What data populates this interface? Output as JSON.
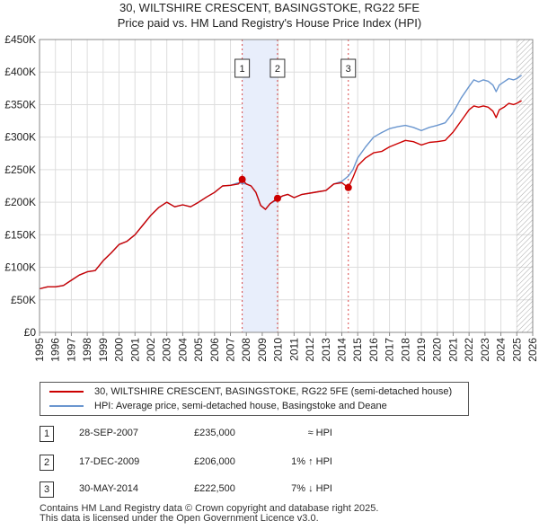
{
  "title_line1": "30, WILTSHIRE CRESCENT, BASINGSTOKE, RG22 5FE",
  "title_line2": "Price paid vs. HM Land Registry's House Price Index (HPI)",
  "colors": {
    "price": "#cc0000",
    "hpi": "#6a96cf",
    "sale_band": "#e8eefb",
    "future_hatch": "#aaaaaa",
    "grid": "#dddddd"
  },
  "chart_data": {
    "type": "line",
    "xlim": [
      1995,
      2026
    ],
    "ylim": [
      0,
      450000
    ],
    "yticks": [
      {
        "value": 0,
        "label": "£0"
      },
      {
        "value": 50000,
        "label": "£50K"
      },
      {
        "value": 100000,
        "label": "£100K"
      },
      {
        "value": 150000,
        "label": "£150K"
      },
      {
        "value": 200000,
        "label": "£200K"
      },
      {
        "value": 250000,
        "label": "£250K"
      },
      {
        "value": 300000,
        "label": "£300K"
      },
      {
        "value": 350000,
        "label": "£350K"
      },
      {
        "value": 400000,
        "label": "£400K"
      },
      {
        "value": 450000,
        "label": "£450K"
      }
    ],
    "xticks": [
      "1995",
      "1996",
      "1997",
      "1998",
      "1999",
      "2000",
      "2001",
      "2002",
      "2003",
      "2004",
      "2005",
      "2006",
      "2007",
      "2008",
      "2009",
      "2010",
      "2011",
      "2012",
      "2013",
      "2014",
      "2015",
      "2016",
      "2017",
      "2018",
      "2019",
      "2020",
      "2021",
      "2022",
      "2023",
      "2024",
      "2025",
      "2026"
    ],
    "series": [
      {
        "name": "30, WILTSHIRE CRESCENT, BASINGSTOKE, RG22 5FE (semi-detached house)",
        "color": "#cc0000",
        "x": [
          1995.0,
          1995.5,
          1996.0,
          1996.5,
          1997.0,
          1997.5,
          1998.0,
          1998.5,
          1999.0,
          1999.5,
          2000.0,
          2000.5,
          2001.0,
          2001.5,
          2002.0,
          2002.5,
          2003.0,
          2003.5,
          2004.0,
          2004.5,
          2005.0,
          2005.5,
          2006.0,
          2006.5,
          2007.0,
          2007.5,
          2007.74,
          2008.0,
          2008.3,
          2008.6,
          2008.9,
          2009.2,
          2009.5,
          2009.96,
          2010.3,
          2010.6,
          2011.0,
          2011.5,
          2012.0,
          2012.5,
          2013.0,
          2013.5,
          2014.0,
          2014.41,
          2014.7,
          2015.0,
          2015.5,
          2016.0,
          2016.5,
          2017.0,
          2017.5,
          2018.0,
          2018.5,
          2019.0,
          2019.5,
          2020.0,
          2020.5,
          2021.0,
          2021.5,
          2022.0,
          2022.3,
          2022.6,
          2022.9,
          2023.2,
          2023.5,
          2023.7,
          2023.9,
          2024.2,
          2024.5,
          2024.8,
          2025.0,
          2025.3
        ],
        "values": [
          67000,
          70000,
          70000,
          72000,
          80000,
          88000,
          93000,
          95000,
          110000,
          122000,
          135000,
          140000,
          150000,
          165000,
          180000,
          192000,
          200000,
          193000,
          196000,
          193000,
          200000,
          208000,
          215000,
          225000,
          226000,
          228000,
          235000,
          228000,
          225000,
          215000,
          195000,
          189000,
          198000,
          206000,
          210000,
          212000,
          207000,
          212000,
          214000,
          216000,
          218000,
          228000,
          230000,
          222500,
          238000,
          256000,
          268000,
          276000,
          278000,
          285000,
          290000,
          295000,
          293000,
          288000,
          292000,
          293000,
          295000,
          308000,
          325000,
          342000,
          348000,
          346000,
          348000,
          346000,
          340000,
          330000,
          342000,
          346000,
          352000,
          350000,
          352000,
          356000
        ]
      },
      {
        "name": "HPI: Average price, semi-detached house, Basingstoke and Deane",
        "color": "#6a96cf",
        "x": [
          1995.0,
          1995.5,
          1996.0,
          1996.5,
          1997.0,
          1997.5,
          1998.0,
          1998.5,
          1999.0,
          1999.5,
          2000.0,
          2000.5,
          2001.0,
          2001.5,
          2002.0,
          2002.5,
          2003.0,
          2003.5,
          2004.0,
          2004.5,
          2005.0,
          2005.5,
          2006.0,
          2006.5,
          2007.0,
          2007.5,
          2008.0,
          2008.3,
          2008.6,
          2008.9,
          2009.2,
          2009.5,
          2009.96,
          2010.3,
          2010.6,
          2011.0,
          2011.5,
          2012.0,
          2012.5,
          2013.0,
          2013.5,
          2014.0,
          2014.41,
          2014.7,
          2015.0,
          2015.5,
          2016.0,
          2016.5,
          2017.0,
          2017.5,
          2018.0,
          2018.5,
          2019.0,
          2019.5,
          2020.0,
          2020.5,
          2021.0,
          2021.5,
          2022.0,
          2022.3,
          2022.6,
          2022.9,
          2023.2,
          2023.5,
          2023.7,
          2023.9,
          2024.2,
          2024.5,
          2024.8,
          2025.0,
          2025.3
        ],
        "values": [
          67000,
          70000,
          70000,
          72000,
          80000,
          88000,
          93000,
          95000,
          110000,
          122000,
          135000,
          140000,
          150000,
          165000,
          180000,
          192000,
          200000,
          193000,
          196000,
          193000,
          200000,
          208000,
          215000,
          225000,
          226000,
          230000,
          228000,
          225000,
          215000,
          195000,
          189000,
          198000,
          204000,
          210000,
          212000,
          207000,
          212000,
          214000,
          216000,
          218000,
          228000,
          232000,
          240000,
          250000,
          268000,
          285000,
          300000,
          307000,
          313000,
          316000,
          318000,
          315000,
          310000,
          315000,
          318000,
          322000,
          338000,
          360000,
          378000,
          388000,
          385000,
          388000,
          386000,
          380000,
          370000,
          380000,
          385000,
          390000,
          388000,
          390000,
          395000
        ]
      }
    ],
    "sales": [
      {
        "num": "1",
        "x": 2007.74,
        "value": 235000
      },
      {
        "num": "2",
        "x": 2009.96,
        "value": 206000
      },
      {
        "num": "3",
        "x": 2014.41,
        "value": 222500
      }
    ],
    "shaded_x_ranges": [
      [
        2007.74,
        2009.96
      ]
    ],
    "future_from_x": 2025.0
  },
  "legend": [
    {
      "label": "30, WILTSHIRE CRESCENT, BASINGSTOKE, RG22 5FE (semi-detached house)",
      "color": "#cc0000"
    },
    {
      "label": "HPI: Average price, semi-detached house, Basingstoke and Deane",
      "color": "#6a96cf"
    }
  ],
  "transactions": [
    {
      "num": "1",
      "date": "28-SEP-2007",
      "price": "£235,000",
      "hpi": "≈ HPI"
    },
    {
      "num": "2",
      "date": "17-DEC-2009",
      "price": "£206,000",
      "hpi": "1% ↑ HPI"
    },
    {
      "num": "3",
      "date": "30-MAY-2014",
      "price": "£222,500",
      "hpi": "7% ↓ HPI"
    }
  ],
  "footer_line1": "Contains HM Land Registry data © Crown copyright and database right 2025.",
  "footer_line2": "This data is licensed under the Open Government Licence v3.0."
}
